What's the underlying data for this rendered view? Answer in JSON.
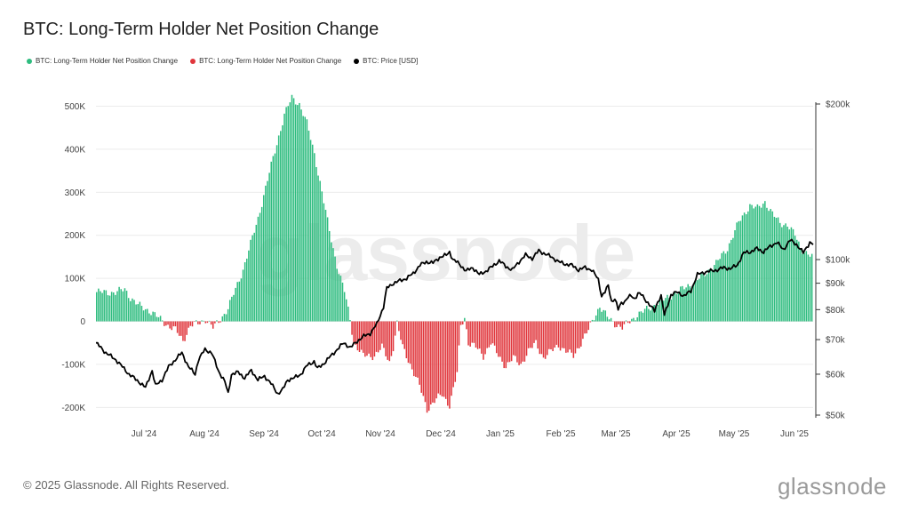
{
  "header": {
    "title": "BTC: Long-Term Holder Net Position Change"
  },
  "legend": [
    {
      "label": "BTC: Long-Term Holder Net Position Change",
      "color": "#2ebc7f"
    },
    {
      "label": "BTC: Long-Term Holder Net Position Change",
      "color": "#e0353b"
    },
    {
      "label": "BTC: Price [USD]",
      "color": "#000000"
    }
  ],
  "watermark": "glassnode",
  "footer": {
    "copyright": "© 2025 Glassnode. All Rights Reserved.",
    "brand": "glassnode"
  },
  "chart_data": {
    "type": "bar",
    "title": "BTC: Long-Term Holder Net Position Change",
    "x_labels": [
      "Jul '24",
      "Aug '24",
      "Sep '24",
      "Oct '24",
      "Nov '24",
      "Dec '24",
      "Jan '25",
      "Feb '25",
      "Mar '25",
      "Apr '25",
      "May '25",
      "Jun '25"
    ],
    "y_left": {
      "ticks": [
        500000,
        400000,
        300000,
        200000,
        100000,
        0,
        -100000,
        -200000
      ],
      "tick_labels": [
        "500K",
        "400K",
        "300K",
        "200K",
        "100K",
        "0",
        "-100K",
        "-200K"
      ],
      "range": [
        -220000,
        530000
      ]
    },
    "y_right": {
      "scale": "log",
      "ticks": [
        200000,
        100000,
        90000,
        80000,
        70000,
        60000,
        50000
      ],
      "tick_labels": [
        "$200k",
        "$100k",
        "$90k",
        "$80k",
        "$70k",
        "$60k",
        "$50k"
      ],
      "range": [
        50000,
        200000
      ]
    },
    "colors": {
      "positive": "#2ebc7f",
      "negative": "#e0353b",
      "price": "#000000"
    },
    "net_position_anchors": [
      [
        0,
        68000
      ],
      [
        10,
        67000
      ],
      [
        15,
        75000
      ],
      [
        18,
        55000
      ],
      [
        22,
        38000
      ],
      [
        28,
        25000
      ],
      [
        34,
        5000
      ],
      [
        38,
        -10000
      ],
      [
        42,
        -20000
      ],
      [
        46,
        -45000
      ],
      [
        50,
        -10000
      ],
      [
        54,
        -5000
      ],
      [
        58,
        5000
      ],
      [
        62,
        -15000
      ],
      [
        66,
        5000
      ],
      [
        70,
        30000
      ],
      [
        78,
        120000
      ],
      [
        86,
        240000
      ],
      [
        94,
        380000
      ],
      [
        100,
        480000
      ],
      [
        104,
        520000
      ],
      [
        108,
        505000
      ],
      [
        112,
        460000
      ],
      [
        116,
        390000
      ],
      [
        120,
        300000
      ],
      [
        124,
        210000
      ],
      [
        128,
        130000
      ],
      [
        132,
        70000
      ],
      [
        135,
        5000
      ],
      [
        137,
        -50000
      ],
      [
        142,
        -80000
      ],
      [
        148,
        -80000
      ],
      [
        152,
        -60000
      ],
      [
        156,
        -95000
      ],
      [
        158,
        -60000
      ],
      [
        160,
        -5000
      ],
      [
        163,
        -60000
      ],
      [
        168,
        -110000
      ],
      [
        172,
        -150000
      ],
      [
        176,
        -205000
      ],
      [
        180,
        -185000
      ],
      [
        184,
        -170000
      ],
      [
        188,
        -195000
      ],
      [
        192,
        -120000
      ],
      [
        194,
        -10000
      ],
      [
        196,
        10000
      ],
      [
        198,
        -50000
      ],
      [
        202,
        -60000
      ],
      [
        206,
        -80000
      ],
      [
        210,
        -50000
      ],
      [
        214,
        -80000
      ],
      [
        218,
        -105000
      ],
      [
        222,
        -85000
      ],
      [
        226,
        -100000
      ],
      [
        230,
        -70000
      ],
      [
        234,
        -50000
      ],
      [
        238,
        -85000
      ],
      [
        242,
        -70000
      ],
      [
        246,
        -55000
      ],
      [
        250,
        -70000
      ],
      [
        254,
        -80000
      ],
      [
        258,
        -50000
      ],
      [
        262,
        -20000
      ],
      [
        265,
        10000
      ],
      [
        268,
        35000
      ],
      [
        272,
        10000
      ],
      [
        276,
        -5000
      ],
      [
        280,
        -15000
      ],
      [
        284,
        0
      ],
      [
        288,
        15000
      ],
      [
        292,
        25000
      ],
      [
        296,
        35000
      ],
      [
        300,
        45000
      ],
      [
        306,
        60000
      ],
      [
        312,
        75000
      ],
      [
        318,
        90000
      ],
      [
        324,
        110000
      ],
      [
        330,
        135000
      ],
      [
        336,
        170000
      ],
      [
        342,
        230000
      ],
      [
        348,
        270000
      ],
      [
        352,
        262000
      ],
      [
        356,
        278000
      ],
      [
        360,
        250000
      ],
      [
        364,
        228000
      ],
      [
        368,
        225000
      ],
      [
        372,
        200000
      ],
      [
        375,
        170000
      ],
      [
        378,
        160000
      ],
      [
        381,
        150000
      ]
    ],
    "price_anchors": [
      [
        0,
        69000
      ],
      [
        6,
        66000
      ],
      [
        12,
        64000
      ],
      [
        16,
        62000
      ],
      [
        20,
        60000
      ],
      [
        26,
        58000
      ],
      [
        30,
        56500
      ],
      [
        34,
        61000
      ],
      [
        36,
        57000
      ],
      [
        40,
        58500
      ],
      [
        44,
        62000
      ],
      [
        48,
        64000
      ],
      [
        52,
        66000
      ],
      [
        56,
        62000
      ],
      [
        60,
        60000
      ],
      [
        62,
        64000
      ],
      [
        66,
        67000
      ],
      [
        70,
        66000
      ],
      [
        74,
        61000
      ],
      [
        78,
        58000
      ],
      [
        80,
        55000
      ],
      [
        82,
        60000
      ],
      [
        86,
        60500
      ],
      [
        90,
        59000
      ],
      [
        94,
        61000
      ],
      [
        98,
        58500
      ],
      [
        102,
        59500
      ],
      [
        106,
        57500
      ],
      [
        110,
        55000
      ],
      [
        113,
        56000
      ],
      [
        116,
        58500
      ],
      [
        120,
        59000
      ],
      [
        124,
        60000
      ],
      [
        128,
        62500
      ],
      [
        132,
        63500
      ],
      [
        134,
        61500
      ],
      [
        138,
        63000
      ],
      [
        142,
        65000
      ],
      [
        146,
        67000
      ],
      [
        150,
        69000
      ],
      [
        154,
        67500
      ],
      [
        158,
        69500
      ],
      [
        162,
        71000
      ],
      [
        166,
        72000
      ],
      [
        170,
        75000
      ],
      [
        174,
        81000
      ],
      [
        176,
        88000
      ],
      [
        180,
        90000
      ],
      [
        184,
        91000
      ],
      [
        188,
        92000
      ],
      [
        192,
        94000
      ],
      [
        196,
        97500
      ],
      [
        200,
        99000
      ],
      [
        204,
        98500
      ],
      [
        208,
        101000
      ],
      [
        212,
        102000
      ],
      [
        214,
        103500
      ],
      [
        216,
        100000
      ],
      [
        220,
        98000
      ],
      [
        224,
        95000
      ],
      [
        228,
        96500
      ],
      [
        232,
        93500
      ],
      [
        236,
        95000
      ],
      [
        240,
        97000
      ],
      [
        244,
        99500
      ],
      [
        248,
        97000
      ],
      [
        252,
        95500
      ],
      [
        256,
        99000
      ],
      [
        260,
        102000
      ],
      [
        264,
        100500
      ],
      [
        268,
        104000
      ],
      [
        272,
        102500
      ],
      [
        276,
        101000
      ],
      [
        280,
        99000
      ],
      [
        284,
        98000
      ],
      [
        288,
        97500
      ],
      [
        292,
        95500
      ],
      [
        296,
        96500
      ],
      [
        300,
        95500
      ],
      [
        304,
        91500
      ],
      [
        306,
        85000
      ],
      [
        308,
        86500
      ],
      [
        310,
        89000
      ],
      [
        312,
        83000
      ],
      [
        314,
        84000
      ],
      [
        316,
        80000
      ],
      [
        318,
        82500
      ],
      [
        320,
        83000
      ],
      [
        322,
        84500
      ],
      [
        324,
        85000
      ],
      [
        326,
        84000
      ],
      [
        328,
        86000
      ],
      [
        330,
        85500
      ],
      [
        332,
        84000
      ],
      [
        334,
        82500
      ],
      [
        338,
        79500
      ],
      [
        340,
        83000
      ],
      [
        342,
        85000
      ],
      [
        344,
        78000
      ],
      [
        348,
        85500
      ],
      [
        352,
        86500
      ],
      [
        356,
        85000
      ],
      [
        360,
        87000
      ],
      [
        364,
        93500
      ],
      [
        368,
        94500
      ],
      [
        372,
        95000
      ],
      [
        376,
        95500
      ],
      [
        380,
        96500
      ],
      [
        384,
        96000
      ],
      [
        388,
        97500
      ],
      [
        392,
        103000
      ],
      [
        396,
        103500
      ],
      [
        400,
        105000
      ],
      [
        404,
        103500
      ],
      [
        408,
        106000
      ],
      [
        412,
        108000
      ],
      [
        416,
        104500
      ],
      [
        420,
        109000
      ],
      [
        424,
        107000
      ],
      [
        428,
        103000
      ],
      [
        432,
        108000
      ],
      [
        434,
        107000
      ]
    ]
  }
}
